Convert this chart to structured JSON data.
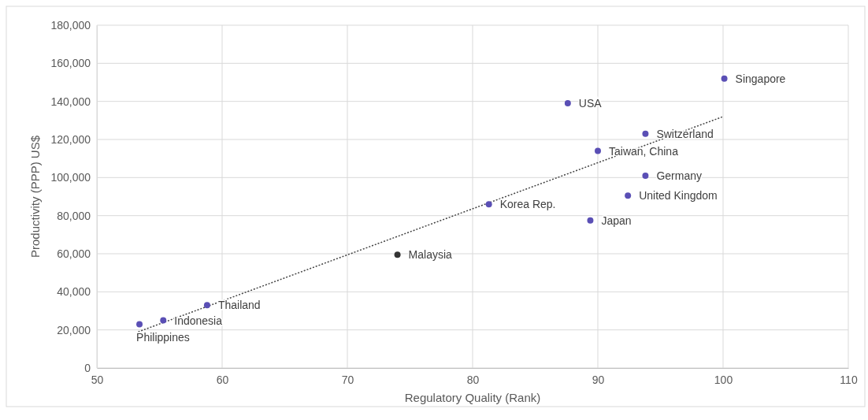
{
  "chart_data": {
    "type": "scatter",
    "xlabel": "Regulatory Quality (Rank)",
    "ylabel": "Productivity (PPP) US$",
    "xlim": [
      50,
      110
    ],
    "xticks": [
      50,
      60,
      70,
      80,
      90,
      100,
      110
    ],
    "ylim": [
      0,
      180000
    ],
    "yticks": [
      {
        "value": 0,
        "label": "0"
      },
      {
        "value": 20000,
        "label": "20,000"
      },
      {
        "value": 40000,
        "label": "40,000"
      },
      {
        "value": 60000,
        "label": "60,000"
      },
      {
        "value": 80000,
        "label": "80,000"
      },
      {
        "value": 100000,
        "label": "100,000"
      },
      {
        "value": 120000,
        "label": "120,000"
      },
      {
        "value": 140000,
        "label": "140,000"
      },
      {
        "value": 160000,
        "label": "160,000"
      },
      {
        "value": 180000,
        "label": "180,000"
      }
    ],
    "grid": true,
    "marker": "circle",
    "series": [
      {
        "x": [
          100.1,
          87.6,
          93.8,
          90,
          93.8,
          92.4,
          89.4,
          81.3,
          74,
          58.8,
          55.3,
          53.4
        ],
        "values": [
          152000,
          139000,
          123000,
          114000,
          101000,
          90500,
          77500,
          86000,
          59500,
          33000,
          25000,
          23000
        ],
        "colors": [
          "#5a4fb5",
          "#5a4fb5",
          "#5a4fb5",
          "#5a4fb5",
          "#5a4fb5",
          "#5a4fb5",
          "#5a4fb5",
          "#5a4fb5",
          "#333333",
          "#5a4fb5",
          "#5a4fb5",
          "#5a4fb5"
        ]
      },
      {
        "type": "line",
        "x": [
          53.3,
          100
        ],
        "values": [
          19000,
          132000
        ],
        "color": "#444444",
        "line_style": "dotted",
        "marker": "none"
      }
    ],
    "annotations": [
      {
        "text": "Singapore",
        "x": 100.1,
        "y": 152000
      },
      {
        "text": "USA",
        "x": 87.6,
        "y": 139000
      },
      {
        "text": "Switzerland",
        "x": 93.8,
        "y": 123000
      },
      {
        "text": "Taiwan, China",
        "x": 90,
        "y": 114000
      },
      {
        "text": "Germany",
        "x": 93.8,
        "y": 101000
      },
      {
        "text": "United Kingdom",
        "x": 92.4,
        "y": 90500
      },
      {
        "text": "Japan",
        "x": 89.4,
        "y": 77500
      },
      {
        "text": "Korea Rep.",
        "x": 81.3,
        "y": 86000
      },
      {
        "text": "Malaysia",
        "x": 74,
        "y": 59500
      },
      {
        "text": "Thailand",
        "x": 58.8,
        "y": 33000
      },
      {
        "text": "Indonesia",
        "x": 55.3,
        "y": 25000
      },
      {
        "text": "Philippines",
        "x": 53.4,
        "y": 23000
      }
    ]
  }
}
